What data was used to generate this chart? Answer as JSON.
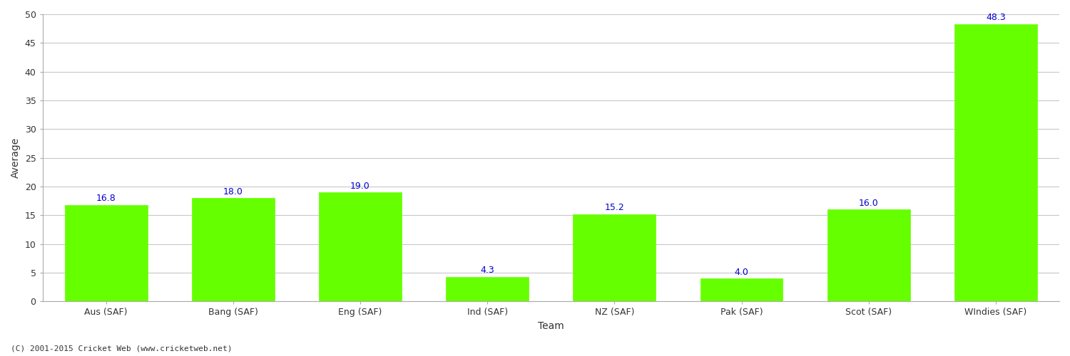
{
  "categories": [
    "Aus (SAF)",
    "Bang (SAF)",
    "Eng (SAF)",
    "Ind (SAF)",
    "NZ (SAF)",
    "Pak (SAF)",
    "Scot (SAF)",
    "WIndies (SAF)"
  ],
  "values": [
    16.8,
    18.0,
    19.0,
    4.3,
    15.2,
    4.0,
    16.0,
    48.3
  ],
  "bar_color": "#66ff00",
  "bar_edgecolor": "#66ff00",
  "xlabel": "Team",
  "ylabel": "Average",
  "ylim": [
    0,
    50
  ],
  "yticks": [
    0,
    5,
    10,
    15,
    20,
    25,
    30,
    35,
    40,
    45,
    50
  ],
  "label_color": "#0000cc",
  "label_fontsize": 9,
  "axis_label_fontsize": 10,
  "tick_label_fontsize": 9,
  "background_color": "#ffffff",
  "grid_color": "#c8c8c8",
  "footer_text": "(C) 2001-2015 Cricket Web (www.cricketweb.net)",
  "footer_fontsize": 8,
  "footer_color": "#333333"
}
